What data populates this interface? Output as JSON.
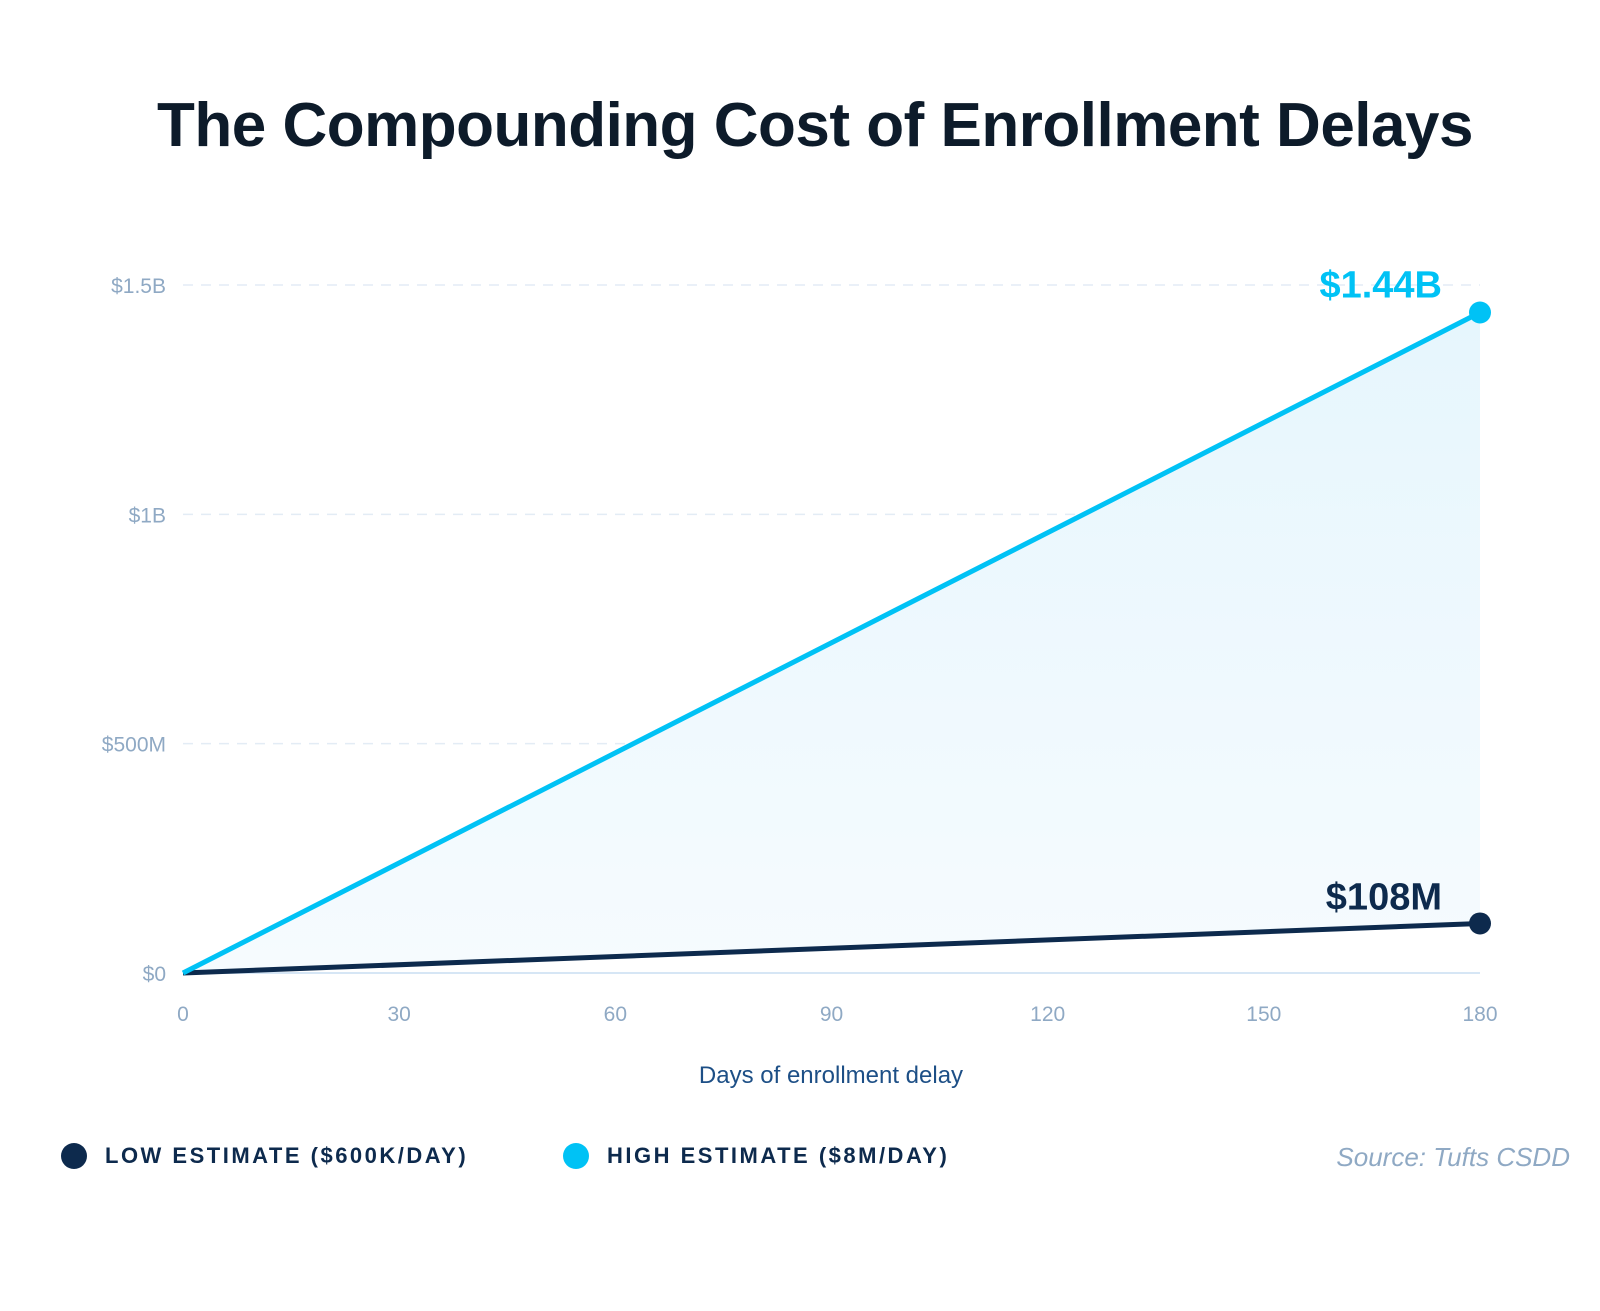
{
  "chart_data": {
    "type": "area",
    "title": "The Compounding Cost of Enrollment Delays",
    "xlabel": "Days of enrollment delay",
    "ylabel": "",
    "x_ticks": [
      0,
      30,
      60,
      90,
      120,
      150,
      180
    ],
    "xlim": [
      0,
      180
    ],
    "y_ticks": [
      {
        "value": 0,
        "label": "$0"
      },
      {
        "value": 500000000,
        "label": "$500M"
      },
      {
        "value": 1000000000,
        "label": "$1B"
      },
      {
        "value": 1500000000,
        "label": "$1.5B"
      }
    ],
    "ylim": [
      0,
      1500000000
    ],
    "grid": "horizontal dashed",
    "series": [
      {
        "name": "LOW ESTIMATE ($600K/DAY)",
        "color": "#0d2a4d",
        "x": [
          0,
          180
        ],
        "values": [
          0,
          108000000
        ],
        "end_label": "$108M"
      },
      {
        "name": "HIGH ESTIMATE ($8M/DAY)",
        "color": "#00c2f5",
        "x": [
          0,
          180
        ],
        "values": [
          0,
          1440000000
        ],
        "end_label": "$1.44B"
      }
    ],
    "fill_between": "#eaf7fd",
    "legend_position": "bottom-left",
    "source": "Source: Tufts CSDD"
  }
}
